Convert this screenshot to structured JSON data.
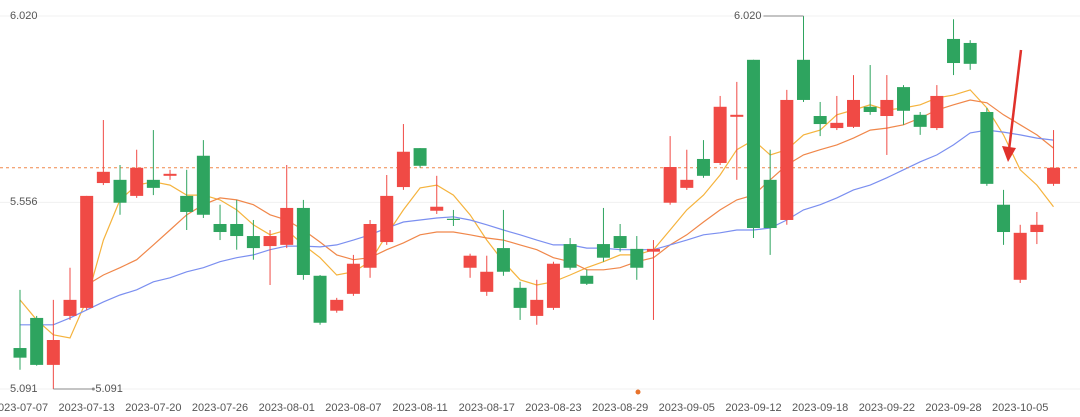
{
  "chart_data": {
    "type": "candlestick",
    "categories": [
      "2023-07-07",
      null,
      null,
      null,
      "2023-07-13",
      null,
      null,
      null,
      "2023-07-20",
      null,
      null,
      null,
      "2023-07-26",
      null,
      null,
      null,
      "2023-08-01",
      null,
      null,
      null,
      "2023-08-07",
      null,
      null,
      null,
      "2023-08-11",
      null,
      null,
      null,
      "2023-08-17",
      null,
      null,
      null,
      "2023-08-23",
      null,
      null,
      null,
      "2023-08-29",
      null,
      null,
      null,
      "2023-09-05",
      null,
      null,
      null,
      "2023-09-12",
      null,
      null,
      null,
      "2023-09-18",
      null,
      null,
      null,
      "2023-09-22",
      null,
      null,
      null,
      "2023-09-28",
      null,
      null,
      null,
      "2023-10-05",
      null,
      null
    ],
    "open": [
      5.193,
      5.268,
      5.151,
      5.273,
      5.293,
      5.604,
      5.612,
      5.572,
      5.612,
      5.622,
      5.572,
      5.672,
      5.502,
      5.502,
      5.472,
      5.447,
      5.45,
      5.542,
      5.373,
      5.286,
      5.328,
      5.393,
      5.457,
      5.594,
      5.691,
      5.535,
      5.515,
      5.393,
      5.333,
      5.442,
      5.343,
      5.273,
      5.293,
      5.452,
      5.373,
      5.452,
      5.472,
      5.44,
      5.433,
      5.555,
      5.592,
      5.664,
      5.654,
      5.769,
      5.911,
      5.612,
      5.512,
      5.911,
      5.771,
      5.741,
      5.744,
      5.794,
      5.771,
      5.843,
      5.774,
      5.741,
      5.963,
      5.953,
      5.781,
      5.55,
      5.363,
      5.482,
      5.602
    ],
    "high": [
      5.338,
      5.273,
      5.313,
      5.393,
      5.572,
      5.761,
      5.649,
      5.687,
      5.736,
      5.637,
      5.637,
      5.711,
      5.55,
      5.562,
      5.512,
      5.487,
      5.649,
      5.562,
      5.375,
      5.318,
      5.425,
      5.512,
      5.624,
      5.751,
      5.691,
      5.622,
      5.537,
      5.428,
      5.423,
      5.537,
      5.358,
      5.363,
      5.408,
      5.467,
      5.388,
      5.542,
      5.502,
      5.472,
      5.462,
      5.721,
      5.687,
      5.711,
      5.821,
      5.856,
      5.911,
      5.687,
      5.836,
      6.02,
      5.806,
      5.821,
      5.873,
      5.898,
      5.873,
      5.848,
      5.781,
      5.848,
      6.012,
      5.96,
      5.791,
      5.587,
      5.5,
      5.532,
      5.736
    ],
    "low": [
      5.139,
      5.149,
      5.091,
      5.263,
      5.288,
      5.599,
      5.525,
      5.567,
      5.574,
      5.612,
      5.487,
      5.517,
      5.462,
      5.438,
      5.413,
      5.35,
      5.442,
      5.363,
      5.251,
      5.281,
      5.323,
      5.368,
      5.45,
      5.587,
      5.642,
      5.527,
      5.497,
      5.368,
      5.323,
      5.373,
      5.263,
      5.251,
      5.288,
      5.388,
      5.35,
      5.408,
      5.433,
      5.363,
      5.263,
      5.55,
      5.587,
      5.617,
      5.649,
      5.612,
      5.467,
      5.425,
      5.5,
      5.806,
      5.721,
      5.736,
      5.741,
      5.774,
      5.674,
      5.749,
      5.724,
      5.736,
      5.873,
      5.886,
      5.597,
      5.45,
      5.355,
      5.452,
      5.597
    ],
    "close": [
      5.169,
      5.151,
      5.213,
      5.313,
      5.572,
      5.632,
      5.555,
      5.642,
      5.592,
      5.627,
      5.532,
      5.525,
      5.482,
      5.472,
      5.442,
      5.472,
      5.542,
      5.375,
      5.256,
      5.313,
      5.403,
      5.502,
      5.572,
      5.682,
      5.647,
      5.545,
      5.512,
      5.423,
      5.383,
      5.383,
      5.293,
      5.313,
      5.403,
      5.393,
      5.353,
      5.418,
      5.442,
      5.393,
      5.44,
      5.644,
      5.612,
      5.622,
      5.794,
      5.774,
      5.492,
      5.492,
      5.811,
      5.811,
      5.751,
      5.754,
      5.811,
      5.781,
      5.811,
      5.784,
      5.744,
      5.821,
      5.903,
      5.901,
      5.602,
      5.482,
      5.48,
      5.5,
      5.642
    ],
    "up_color": "#f04a45",
    "down_color": "#2ea45f",
    "lines": [
      {
        "color": "#f5b33d",
        "values": [
          5.313,
          5.263,
          5.226,
          5.218,
          5.313,
          5.462,
          5.562,
          5.599,
          5.607,
          5.599,
          5.574,
          5.574,
          5.562,
          5.537,
          5.5,
          5.475,
          5.487,
          5.45,
          5.418,
          5.375,
          5.383,
          5.408,
          5.475,
          5.537,
          5.592,
          5.599,
          5.574,
          5.525,
          5.462,
          5.408,
          5.363,
          5.35,
          5.358,
          5.375,
          5.393,
          5.408,
          5.425,
          5.425,
          5.438,
          5.487,
          5.537,
          5.574,
          5.624,
          5.687,
          5.711,
          5.674,
          5.687,
          5.724,
          5.736,
          5.774,
          5.786,
          5.799,
          5.786,
          5.791,
          5.799,
          5.816,
          5.823,
          5.836,
          5.791,
          5.724,
          5.637,
          5.599,
          5.545
        ]
      },
      {
        "color": "#f0874a",
        "values": [
          null,
          null,
          null,
          null,
          5.35,
          5.375,
          5.393,
          5.413,
          5.45,
          5.487,
          5.525,
          5.55,
          5.567,
          5.562,
          5.55,
          5.525,
          5.512,
          5.487,
          5.457,
          5.425,
          5.413,
          5.418,
          5.438,
          5.455,
          5.475,
          5.482,
          5.482,
          5.475,
          5.467,
          5.462,
          5.45,
          5.438,
          5.418,
          5.408,
          5.388,
          5.388,
          5.393,
          5.408,
          5.418,
          5.45,
          5.475,
          5.507,
          5.537,
          5.562,
          5.574,
          5.612,
          5.649,
          5.674,
          5.687,
          5.699,
          5.716,
          5.736,
          5.741,
          5.749,
          5.766,
          5.786,
          5.799,
          5.811,
          5.804,
          5.774,
          5.749,
          5.724,
          5.691
        ]
      },
      {
        "color": "#7b8ff0",
        "values": [
          5.251,
          5.251,
          5.251,
          5.268,
          5.288,
          5.308,
          5.325,
          5.338,
          5.358,
          5.368,
          5.383,
          5.393,
          5.408,
          5.418,
          5.425,
          5.438,
          5.447,
          5.447,
          5.445,
          5.45,
          5.462,
          5.475,
          5.492,
          5.507,
          5.512,
          5.517,
          5.52,
          5.512,
          5.5,
          5.487,
          5.475,
          5.462,
          5.45,
          5.45,
          5.442,
          5.442,
          5.438,
          5.438,
          5.438,
          5.45,
          5.462,
          5.475,
          5.48,
          5.487,
          5.487,
          5.492,
          5.512,
          5.537,
          5.55,
          5.567,
          5.587,
          5.599,
          5.617,
          5.637,
          5.657,
          5.674,
          5.699,
          5.729,
          5.736,
          5.731,
          5.724,
          5.716,
          5.711
        ]
      }
    ],
    "ylim": [
      5.076,
      6.06
    ],
    "yticks": [
      {
        "value": 6.02,
        "label": "6.020"
      },
      {
        "value": 5.556,
        "label": "5.556"
      },
      {
        "value": 5.091,
        "label": "5.091"
      }
    ],
    "grid": true,
    "last_price_line": true,
    "last_price_color": "#f0874a",
    "max_label": {
      "value": 6.02,
      "label": "6.020"
    },
    "min_label": {
      "value": 5.091,
      "label": "5.091"
    }
  }
}
